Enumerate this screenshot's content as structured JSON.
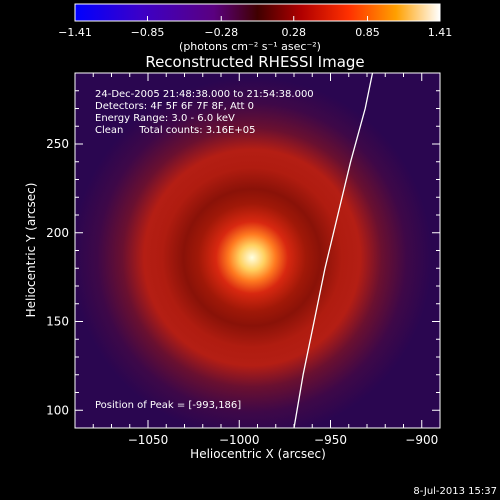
{
  "chart_data": {
    "type": "heatmap",
    "title": "Reconstructed RHESSI Image",
    "xlabel": "Heliocentric X (arcsec)",
    "ylabel": "Heliocentric Y (arcsec)",
    "xlim": [
      -1090,
      -890
    ],
    "ylim": [
      90,
      290
    ],
    "xticks": [
      -1050,
      -1000,
      -950,
      -900
    ],
    "yticks": [
      100,
      150,
      200,
      250
    ],
    "colorbar": {
      "label": "(photons cm⁻² s⁻¹ asec⁻²)",
      "ticks": [
        "-1.41",
        "-0.85",
        "-0.28",
        "0.28",
        "0.85",
        "1.41"
      ],
      "range": [
        -1.41,
        1.41
      ]
    },
    "annotations": [
      "24-Dec-2005 21:48:38.000 to 21:54:38.000",
      "Detectors: 4F 5F 6F 7F 8F, Att 0",
      "Energy Range: 3.0 - 6.0 keV",
      "Clean     Total counts: 3.16E+05"
    ],
    "peak_label": "Position of Peak = [-993,186]",
    "peak": {
      "x": -993,
      "y": 186
    },
    "ring": {
      "center_x": -990,
      "center_y": 188,
      "radius_arcsec": 75
    },
    "limb_curve": [
      {
        "x": -970,
        "y": 90
      },
      {
        "x": -965,
        "y": 120
      },
      {
        "x": -959,
        "y": 150
      },
      {
        "x": -953,
        "y": 180
      },
      {
        "x": -946,
        "y": 210
      },
      {
        "x": -939,
        "y": 240
      },
      {
        "x": -931,
        "y": 270
      },
      {
        "x": -927,
        "y": 290
      }
    ]
  },
  "footer_date": "8-Jul-2013 15:37"
}
